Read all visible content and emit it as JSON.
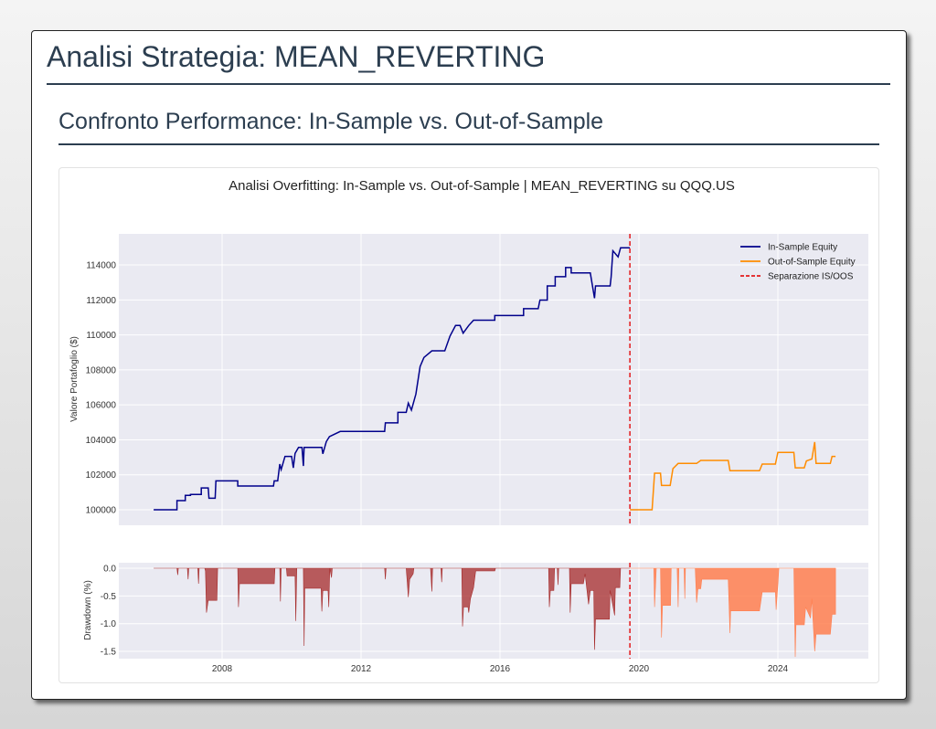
{
  "page": {
    "title": "Analisi Strategia: MEAN_REVERTING",
    "section_title": "Confronto Performance: In-Sample vs. Out-of-Sample"
  },
  "chart_data": [
    {
      "type": "line",
      "title": "Analisi Overfitting: In-Sample vs. Out-of-Sample | MEAN_REVERTING su QQQ.US",
      "ylabel": "Valore Portafoglio ($)",
      "xlabel": "",
      "ylim": [
        99100,
        115800
      ],
      "xlim": [
        2005.1,
        2026.7
      ],
      "yticks": [
        "100000",
        "102000",
        "104000",
        "106000",
        "108000",
        "110000",
        "112000",
        "114000"
      ],
      "grid": true,
      "legend_position": "top-right",
      "separator": {
        "name": "Separazione IS/OOS",
        "x": 2019.74,
        "color": "#e31a1c"
      },
      "series": [
        {
          "name": "In-Sample Equity",
          "color": "#00008b",
          "points": [
            [
              2006.03,
              100000
            ],
            [
              2006.7,
              100000
            ],
            [
              2006.7,
              100520
            ],
            [
              2006.94,
              100520
            ],
            [
              2006.94,
              100820
            ],
            [
              2007.09,
              100820
            ],
            [
              2007.09,
              100870
            ],
            [
              2007.4,
              100870
            ],
            [
              2007.4,
              101250
            ],
            [
              2007.6,
              101250
            ],
            [
              2007.62,
              100660
            ],
            [
              2007.8,
              100660
            ],
            [
              2007.82,
              101650
            ],
            [
              2008.45,
              101650
            ],
            [
              2008.45,
              101360
            ],
            [
              2009.48,
              101360
            ],
            [
              2009.5,
              101650
            ],
            [
              2009.6,
              101650
            ],
            [
              2009.66,
              102610
            ],
            [
              2009.7,
              102300
            ],
            [
              2009.81,
              103050
            ],
            [
              2010.0,
              103050
            ],
            [
              2010.05,
              102400
            ],
            [
              2010.1,
              103220
            ],
            [
              2010.2,
              103570
            ],
            [
              2010.3,
              103570
            ],
            [
              2010.34,
              102500
            ],
            [
              2010.36,
              103570
            ],
            [
              2010.87,
              103570
            ],
            [
              2010.9,
              103200
            ],
            [
              2011.0,
              103900
            ],
            [
              2011.09,
              104180
            ],
            [
              2011.4,
              104480
            ],
            [
              2012.68,
              104480
            ],
            [
              2012.7,
              104970
            ],
            [
              2013.06,
              104970
            ],
            [
              2013.06,
              105570
            ],
            [
              2013.3,
              105570
            ],
            [
              2013.36,
              106100
            ],
            [
              2013.45,
              105700
            ],
            [
              2013.58,
              106620
            ],
            [
              2013.7,
              108190
            ],
            [
              2013.81,
              108710
            ],
            [
              2014.04,
              109090
            ],
            [
              2014.41,
              109090
            ],
            [
              2014.56,
              109930
            ],
            [
              2014.72,
              110540
            ],
            [
              2014.85,
              110540
            ],
            [
              2014.94,
              110100
            ],
            [
              2015.1,
              110540
            ],
            [
              2015.24,
              110840
            ],
            [
              2015.85,
              110840
            ],
            [
              2015.85,
              111110
            ],
            [
              2016.68,
              111110
            ],
            [
              2016.68,
              111500
            ],
            [
              2017.1,
              111500
            ],
            [
              2017.15,
              111990
            ],
            [
              2017.36,
              111990
            ],
            [
              2017.36,
              112800
            ],
            [
              2017.59,
              112800
            ],
            [
              2017.59,
              113330
            ],
            [
              2017.89,
              113330
            ],
            [
              2017.89,
              113850
            ],
            [
              2018.05,
              113850
            ],
            [
              2018.05,
              113540
            ],
            [
              2018.6,
              113540
            ],
            [
              2018.72,
              112100
            ],
            [
              2018.75,
              112800
            ],
            [
              2019.17,
              112800
            ],
            [
              2019.2,
              113330
            ],
            [
              2019.25,
              114810
            ],
            [
              2019.4,
              114460
            ],
            [
              2019.47,
              114980
            ],
            [
              2019.74,
              114980
            ]
          ]
        },
        {
          "name": "Out-of-Sample Equity",
          "color": "#ff8c00",
          "points": [
            [
              2019.74,
              100000
            ],
            [
              2020.38,
              100000
            ],
            [
              2020.45,
              102090
            ],
            [
              2020.62,
              102090
            ],
            [
              2020.65,
              101390
            ],
            [
              2020.9,
              101390
            ],
            [
              2020.98,
              102350
            ],
            [
              2021.13,
              102650
            ],
            [
              2021.66,
              102650
            ],
            [
              2021.78,
              102820
            ],
            [
              2022.57,
              102820
            ],
            [
              2022.62,
              102230
            ],
            [
              2023.47,
              102230
            ],
            [
              2023.55,
              102610
            ],
            [
              2023.93,
              102610
            ],
            [
              2024.0,
              103280
            ],
            [
              2024.46,
              103280
            ],
            [
              2024.5,
              102400
            ],
            [
              2024.76,
              102400
            ],
            [
              2024.82,
              102790
            ],
            [
              2024.98,
              102900
            ],
            [
              2025.06,
              103870
            ],
            [
              2025.1,
              102650
            ],
            [
              2025.51,
              102650
            ],
            [
              2025.56,
              103050
            ],
            [
              2025.66,
              103050
            ]
          ]
        }
      ]
    },
    {
      "type": "area",
      "title": "",
      "ylabel": "Drawdown (%)",
      "xlabel": "",
      "ylim": [
        -1.65,
        0.1
      ],
      "yticks": [
        "0.0",
        "-0.5",
        "-1.0",
        "-1.5"
      ],
      "xticks": [
        "2008",
        "2012",
        "2016",
        "2020",
        "2024"
      ],
      "grid": true,
      "series": [
        {
          "name": "In-Sample",
          "color": "#a52a2a",
          "points": [
            [
              2006.03,
              0
            ],
            [
              2006.7,
              0
            ],
            [
              2006.72,
              -0.12
            ],
            [
              2006.74,
              0
            ],
            [
              2007.0,
              0
            ],
            [
              2007.02,
              -0.2
            ],
            [
              2007.04,
              0
            ],
            [
              2007.3,
              0
            ],
            [
              2007.32,
              -0.28
            ],
            [
              2007.34,
              0
            ],
            [
              2007.5,
              0
            ],
            [
              2007.52,
              -0.05
            ],
            [
              2007.55,
              -0.8
            ],
            [
              2007.6,
              -0.58
            ],
            [
              2007.85,
              -0.58
            ],
            [
              2007.87,
              0
            ],
            [
              2008.45,
              0
            ],
            [
              2008.47,
              -0.7
            ],
            [
              2008.5,
              -0.28
            ],
            [
              2009.5,
              -0.28
            ],
            [
              2009.52,
              0
            ],
            [
              2009.66,
              0
            ],
            [
              2009.68,
              -0.6
            ],
            [
              2009.7,
              0
            ],
            [
              2009.85,
              0
            ],
            [
              2009.87,
              -0.14
            ],
            [
              2010.1,
              -0.14
            ],
            [
              2010.12,
              -0.95
            ],
            [
              2010.15,
              0
            ],
            [
              2010.34,
              0
            ],
            [
              2010.36,
              -1.4
            ],
            [
              2010.38,
              -0.36
            ],
            [
              2010.85,
              -0.36
            ],
            [
              2010.87,
              -0.78
            ],
            [
              2010.9,
              -0.4
            ],
            [
              2011.05,
              -0.4
            ],
            [
              2011.07,
              -0.7
            ],
            [
              2011.1,
              0
            ],
            [
              2011.15,
              -0.17
            ],
            [
              2011.17,
              0
            ],
            [
              2012.68,
              0
            ],
            [
              2012.7,
              -0.2
            ],
            [
              2012.72,
              0
            ],
            [
              2013.3,
              0
            ],
            [
              2013.36,
              -0.52
            ],
            [
              2013.4,
              -0.2
            ],
            [
              2013.5,
              -0.1
            ],
            [
              2013.52,
              0
            ],
            [
              2014.0,
              0
            ],
            [
              2014.04,
              -0.42
            ],
            [
              2014.06,
              0
            ],
            [
              2014.3,
              0
            ],
            [
              2014.32,
              -0.25
            ],
            [
              2014.34,
              0
            ],
            [
              2014.9,
              0
            ],
            [
              2014.92,
              -1.05
            ],
            [
              2014.95,
              -0.7
            ],
            [
              2015.08,
              -0.7
            ],
            [
              2015.1,
              -0.8
            ],
            [
              2015.15,
              -0.55
            ],
            [
              2015.24,
              -0.35
            ],
            [
              2015.3,
              -0.05
            ],
            [
              2015.85,
              -0.05
            ],
            [
              2015.87,
              0
            ],
            [
              2017.4,
              0
            ],
            [
              2017.42,
              -0.7
            ],
            [
              2017.45,
              -0.4
            ],
            [
              2017.55,
              -0.4
            ],
            [
              2017.57,
              0
            ],
            [
              2017.65,
              0
            ],
            [
              2017.67,
              -0.3
            ],
            [
              2017.69,
              0
            ],
            [
              2018.0,
              0
            ],
            [
              2018.02,
              -0.8
            ],
            [
              2018.05,
              -0.28
            ],
            [
              2018.4,
              -0.28
            ],
            [
              2018.45,
              -0.1
            ],
            [
              2018.55,
              -0.65
            ],
            [
              2018.6,
              -0.4
            ],
            [
              2018.7,
              -0.4
            ],
            [
              2018.72,
              -1.47
            ],
            [
              2018.75,
              -0.92
            ],
            [
              2019.15,
              -0.92
            ],
            [
              2019.17,
              -0.4
            ],
            [
              2019.3,
              -0.85
            ],
            [
              2019.32,
              -0.35
            ],
            [
              2019.45,
              -0.35
            ],
            [
              2019.47,
              0
            ],
            [
              2019.74,
              0
            ]
          ]
        },
        {
          "name": "Out-of-Sample",
          "color": "#ff7f50",
          "points": [
            [
              2019.74,
              0
            ],
            [
              2020.43,
              0
            ],
            [
              2020.45,
              -0.7
            ],
            [
              2020.5,
              0
            ],
            [
              2020.62,
              0
            ],
            [
              2020.65,
              -1.25
            ],
            [
              2020.68,
              -0.67
            ],
            [
              2020.91,
              -0.67
            ],
            [
              2020.93,
              0
            ],
            [
              2021.1,
              0
            ],
            [
              2021.13,
              -0.7
            ],
            [
              2021.15,
              0
            ],
            [
              2021.3,
              0
            ],
            [
              2021.32,
              -0.55
            ],
            [
              2021.34,
              0
            ],
            [
              2021.62,
              0
            ],
            [
              2021.66,
              -0.62
            ],
            [
              2021.7,
              -0.37
            ],
            [
              2021.78,
              -0.37
            ],
            [
              2021.81,
              -0.2
            ],
            [
              2022.57,
              -0.2
            ],
            [
              2022.62,
              -1.17
            ],
            [
              2022.64,
              -0.77
            ],
            [
              2023.47,
              -0.77
            ],
            [
              2023.55,
              -0.43
            ],
            [
              2023.93,
              -0.43
            ],
            [
              2023.95,
              -0.75
            ],
            [
              2024.0,
              -0.3
            ],
            [
              2024.03,
              0
            ],
            [
              2024.46,
              0
            ],
            [
              2024.5,
              -1.6
            ],
            [
              2024.52,
              -1.02
            ],
            [
              2024.76,
              -1.02
            ],
            [
              2024.8,
              -0.7
            ],
            [
              2024.94,
              -0.9
            ],
            [
              2024.98,
              -0.55
            ],
            [
              2025.06,
              -1.5
            ],
            [
              2025.1,
              -1.19
            ],
            [
              2025.51,
              -1.19
            ],
            [
              2025.56,
              -0.83
            ],
            [
              2025.66,
              -0.83
            ],
            [
              2025.66,
              0
            ]
          ]
        }
      ]
    }
  ]
}
